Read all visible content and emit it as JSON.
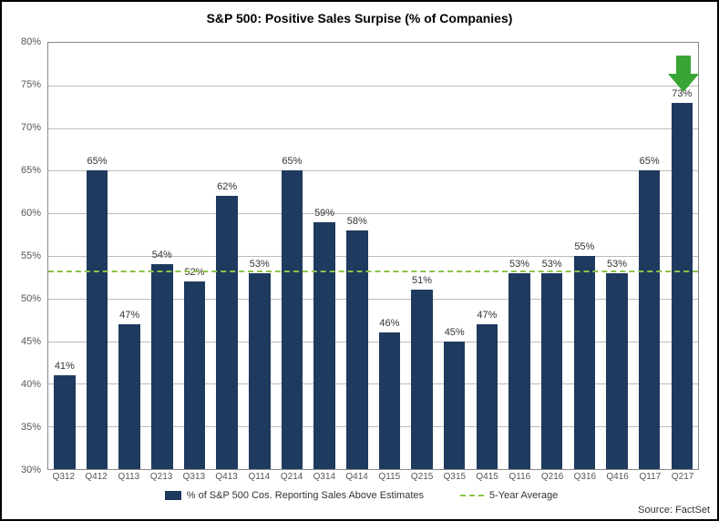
{
  "title": "S&P 500: Positive Sales Surpise (% of Companies)",
  "source": "Source: FactSet",
  "chart": {
    "type": "bar",
    "ylim": [
      30,
      80
    ],
    "ytick_step": 5,
    "y_suffix": "%",
    "grid_color": "#bbbbbb",
    "bar_color": "#1f3a5f",
    "background_color": "#ffffff",
    "average_line": {
      "value": 53.3,
      "color": "#8bc34a",
      "style": "dashed"
    },
    "categories": [
      "Q312",
      "Q412",
      "Q113",
      "Q213",
      "Q313",
      "Q413",
      "Q114",
      "Q214",
      "Q314",
      "Q414",
      "Q115",
      "Q215",
      "Q315",
      "Q415",
      "Q116",
      "Q216",
      "Q316",
      "Q416",
      "Q117",
      "Q217"
    ],
    "values": [
      41,
      65,
      47,
      54,
      52,
      62,
      53,
      65,
      59,
      58,
      46,
      51,
      45,
      47,
      53,
      53,
      55,
      53,
      65,
      73
    ],
    "labels": [
      "41%",
      "65%",
      "47%",
      "54%",
      "52%",
      "62%",
      "53%",
      "65%",
      "59%",
      "58%",
      "46%",
      "51%",
      "45%",
      "47%",
      "53%",
      "53%",
      "55%",
      "53%",
      "65%",
      "73%"
    ],
    "highlight_arrow": {
      "index": 19,
      "color": "#3aa537"
    }
  },
  "legend": {
    "series_label": "% of S&P 500 Cos. Reporting Sales Above Estimates",
    "avg_label": "5-Year Average"
  },
  "fonts": {
    "title_size": 14,
    "axis_size": 11,
    "category_size": 10,
    "label_size": 11
  }
}
